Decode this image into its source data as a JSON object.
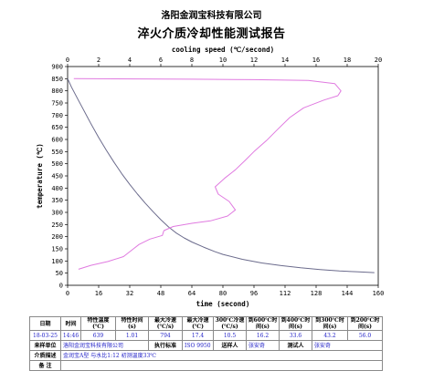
{
  "header": {
    "company": "洛阳金润宝科技有限公司",
    "title": "淬火介质冷却性能测试报告"
  },
  "chart_data": {
    "type": "line",
    "title": "",
    "xlabel": "time (second)",
    "ylabel": "temperature (℃)",
    "x2label": "cooling speed (℃/second)",
    "xlim": [
      0,
      160
    ],
    "ylim": [
      0,
      900
    ],
    "x2lim": [
      0,
      20
    ],
    "xticks": [
      "0",
      "16",
      "32",
      "48",
      "64",
      "80",
      "96",
      "112",
      "128",
      "144",
      "160"
    ],
    "yticks": [
      "0",
      "50",
      "100",
      "150",
      "200",
      "250",
      "300",
      "350",
      "400",
      "450",
      "500",
      "550",
      "600",
      "650",
      "700",
      "750",
      "800",
      "850",
      "900"
    ],
    "x2ticks": [
      "0",
      "2",
      "4",
      "6",
      "8",
      "10",
      "12",
      "14",
      "16",
      "18",
      "20"
    ],
    "grid": false,
    "series": [
      {
        "name": "",
        "axis": "time",
        "color": "#6b6b8c",
        "points": [
          [
            0,
            850
          ],
          [
            2,
            815
          ],
          [
            5,
            770
          ],
          [
            8,
            725
          ],
          [
            12,
            665
          ],
          [
            16,
            608
          ],
          [
            20,
            555
          ],
          [
            24,
            505
          ],
          [
            28,
            458
          ],
          [
            32,
            415
          ],
          [
            36,
            375
          ],
          [
            40,
            338
          ],
          [
            44,
            303
          ],
          [
            48,
            270
          ],
          [
            52,
            240
          ],
          [
            56,
            215
          ],
          [
            60,
            195
          ],
          [
            64,
            178
          ],
          [
            70,
            157
          ],
          [
            76,
            138
          ],
          [
            80,
            127
          ],
          [
            90,
            107
          ],
          [
            100,
            92
          ],
          [
            110,
            81
          ],
          [
            120,
            72
          ],
          [
            130,
            65
          ],
          [
            140,
            59
          ],
          [
            150,
            55
          ],
          [
            158,
            52
          ]
        ]
      },
      {
        "name": "",
        "axis": "cooling_speed",
        "color": "#e07ae0",
        "points": [
          [
            0.4,
            850
          ],
          [
            8,
            848
          ],
          [
            12,
            846
          ],
          [
            15.5,
            843
          ],
          [
            17.2,
            830
          ],
          [
            17.6,
            800
          ],
          [
            17.4,
            780
          ],
          [
            16.5,
            762
          ],
          [
            15.2,
            730
          ],
          [
            14.3,
            690
          ],
          [
            13.5,
            640
          ],
          [
            12.8,
            595
          ],
          [
            12,
            550
          ],
          [
            11.4,
            512
          ],
          [
            10.8,
            475
          ],
          [
            10.1,
            440
          ],
          [
            9.5,
            405
          ],
          [
            9.7,
            375
          ],
          [
            10.4,
            345
          ],
          [
            10.8,
            310
          ],
          [
            10.3,
            285
          ],
          [
            9.2,
            265
          ],
          [
            8.0,
            255
          ],
          [
            6.8,
            242
          ],
          [
            6.2,
            225
          ],
          [
            6.1,
            205
          ],
          [
            5.3,
            190
          ],
          [
            4.6,
            168
          ],
          [
            4.2,
            148
          ],
          [
            3.6,
            118
          ],
          [
            2.6,
            98
          ],
          [
            1.5,
            82
          ],
          [
            0.7,
            66
          ]
        ]
      }
    ]
  },
  "table": {
    "header": [
      "日期",
      "时间",
      "特性温度(℃)",
      "特性时间(s)",
      "最大冷速(℃/s)",
      "最大冷速(℃)",
      "300℃冷速(℃/s)",
      "到600℃时间(s)",
      "到400℃时间(s)",
      "到300℃时间(s)",
      "到200℃时间(s)"
    ],
    "values": [
      "18-03-25",
      "14:46",
      "639",
      "1.01",
      "794",
      "17.4",
      "10.5",
      "16.2",
      "33.6",
      "43.2",
      "56.0"
    ],
    "sample_label": "来样单位",
    "sample_value": "洛阳金润宝科技有限公司",
    "executor_label": "执行标准",
    "executor_value": "ISO 9950",
    "sender_label": "送样人",
    "sender_value": "张安奇",
    "tester_label": "测试人",
    "tester_value": "张安奇",
    "medium_label": "介质描述",
    "medium_value": "金润宝A型  与水比1:12  初测温度33℃",
    "remarks_label": "备 注",
    "remarks_value": ""
  }
}
